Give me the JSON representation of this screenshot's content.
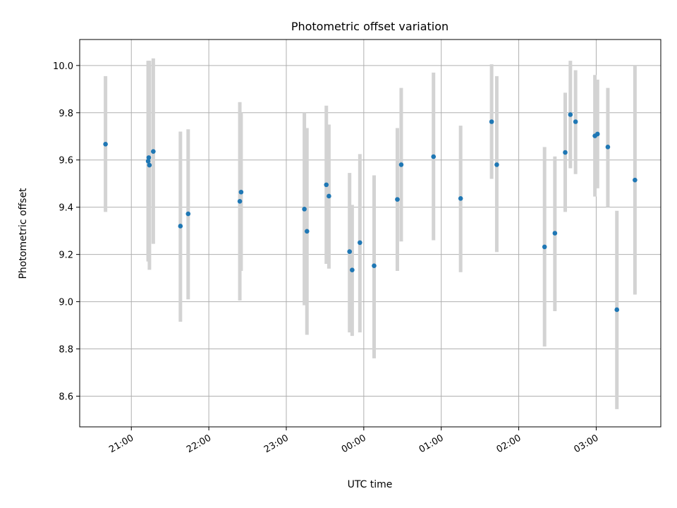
{
  "chart_data": {
    "type": "scatter",
    "title": "Photometric offset variation",
    "xlabel": "UTC time",
    "ylabel": "Photometric offset",
    "grid": true,
    "xlim": [
      "2024-01-01T20:20",
      "2024-01-02T03:50"
    ],
    "ylim": [
      8.47,
      10.11
    ],
    "x_ticks": [
      {
        "t": "2024-01-01T21:00",
        "label": "21:00"
      },
      {
        "t": "2024-01-01T22:00",
        "label": "22:00"
      },
      {
        "t": "2024-01-01T23:00",
        "label": "23:00"
      },
      {
        "t": "2024-01-02T00:00",
        "label": "00:00"
      },
      {
        "t": "2024-01-02T01:00",
        "label": "01:00"
      },
      {
        "t": "2024-01-02T02:00",
        "label": "02:00"
      },
      {
        "t": "2024-01-02T03:00",
        "label": "03:00"
      }
    ],
    "y_ticks": [
      {
        "v": 8.6,
        "label": "8.6"
      },
      {
        "v": 8.8,
        "label": "8.8"
      },
      {
        "v": 9.0,
        "label": "9.0"
      },
      {
        "v": 9.2,
        "label": "9.2"
      },
      {
        "v": 9.4,
        "label": "9.4"
      },
      {
        "v": 9.6,
        "label": "9.6"
      },
      {
        "v": 9.8,
        "label": "9.8"
      },
      {
        "v": 10.0,
        "label": "10.0"
      }
    ],
    "marker_color": "#1f77b4",
    "errorbar_color": "#d3d3d3",
    "points": [
      {
        "t": "2024-01-01T20:40",
        "y": 9.667,
        "lo": 9.38,
        "hi": 9.955
      },
      {
        "t": "2024-01-01T21:13",
        "y": 9.595,
        "lo": 9.17,
        "hi": 10.02
      },
      {
        "t": "2024-01-01T21:13:30",
        "y": 9.61,
        "lo": 9.25,
        "hi": 10.0
      },
      {
        "t": "2024-01-01T21:14",
        "y": 9.578,
        "lo": 9.135,
        "hi": 10.02
      },
      {
        "t": "2024-01-01T21:17",
        "y": 9.636,
        "lo": 9.245,
        "hi": 10.03
      },
      {
        "t": "2024-01-01T21:38",
        "y": 9.32,
        "lo": 8.915,
        "hi": 9.72
      },
      {
        "t": "2024-01-01T21:44",
        "y": 9.372,
        "lo": 9.01,
        "hi": 9.73
      },
      {
        "t": "2024-01-01T22:24",
        "y": 9.425,
        "lo": 9.005,
        "hi": 9.845
      },
      {
        "t": "2024-01-01T22:25",
        "y": 9.464,
        "lo": 9.13,
        "hi": 9.8
      },
      {
        "t": "2024-01-01T23:14",
        "y": 9.392,
        "lo": 8.985,
        "hi": 9.8
      },
      {
        "t": "2024-01-01T23:16",
        "y": 9.298,
        "lo": 8.86,
        "hi": 9.735
      },
      {
        "t": "2024-01-01T23:31",
        "y": 9.495,
        "lo": 9.16,
        "hi": 9.83
      },
      {
        "t": "2024-01-01T23:33",
        "y": 9.447,
        "lo": 9.14,
        "hi": 9.75
      },
      {
        "t": "2024-01-01T23:49",
        "y": 9.212,
        "lo": 8.87,
        "hi": 9.545
      },
      {
        "t": "2024-01-01T23:51",
        "y": 9.134,
        "lo": 8.855,
        "hi": 9.41
      },
      {
        "t": "2024-01-01T23:57",
        "y": 9.25,
        "lo": 8.87,
        "hi": 9.625
      },
      {
        "t": "2024-01-02T00:08",
        "y": 9.152,
        "lo": 8.76,
        "hi": 9.535
      },
      {
        "t": "2024-01-02T00:26",
        "y": 9.433,
        "lo": 9.13,
        "hi": 9.735
      },
      {
        "t": "2024-01-02T00:29",
        "y": 9.58,
        "lo": 9.255,
        "hi": 9.905
      },
      {
        "t": "2024-01-02T00:54",
        "y": 9.614,
        "lo": 9.26,
        "hi": 9.97
      },
      {
        "t": "2024-01-02T01:15",
        "y": 9.437,
        "lo": 9.125,
        "hi": 9.745
      },
      {
        "t": "2024-01-02T01:39",
        "y": 9.762,
        "lo": 9.52,
        "hi": 10.005
      },
      {
        "t": "2024-01-02T01:43",
        "y": 9.58,
        "lo": 9.21,
        "hi": 9.955
      },
      {
        "t": "2024-01-02T02:20",
        "y": 9.232,
        "lo": 8.81,
        "hi": 9.655
      },
      {
        "t": "2024-01-02T02:28",
        "y": 9.29,
        "lo": 8.96,
        "hi": 9.615
      },
      {
        "t": "2024-01-02T02:36",
        "y": 9.632,
        "lo": 9.38,
        "hi": 9.885
      },
      {
        "t": "2024-01-02T02:40",
        "y": 9.792,
        "lo": 9.565,
        "hi": 10.02
      },
      {
        "t": "2024-01-02T02:44",
        "y": 9.762,
        "lo": 9.54,
        "hi": 9.98
      },
      {
        "t": "2024-01-02T02:59",
        "y": 9.702,
        "lo": 9.445,
        "hi": 9.96
      },
      {
        "t": "2024-01-02T03:01",
        "y": 9.71,
        "lo": 9.48,
        "hi": 9.94
      },
      {
        "t": "2024-01-02T03:09",
        "y": 9.655,
        "lo": 9.4,
        "hi": 9.905
      },
      {
        "t": "2024-01-02T03:16",
        "y": 8.966,
        "lo": 8.545,
        "hi": 9.385
      },
      {
        "t": "2024-01-02T03:30",
        "y": 9.515,
        "lo": 9.03,
        "hi": 10.0
      }
    ]
  }
}
